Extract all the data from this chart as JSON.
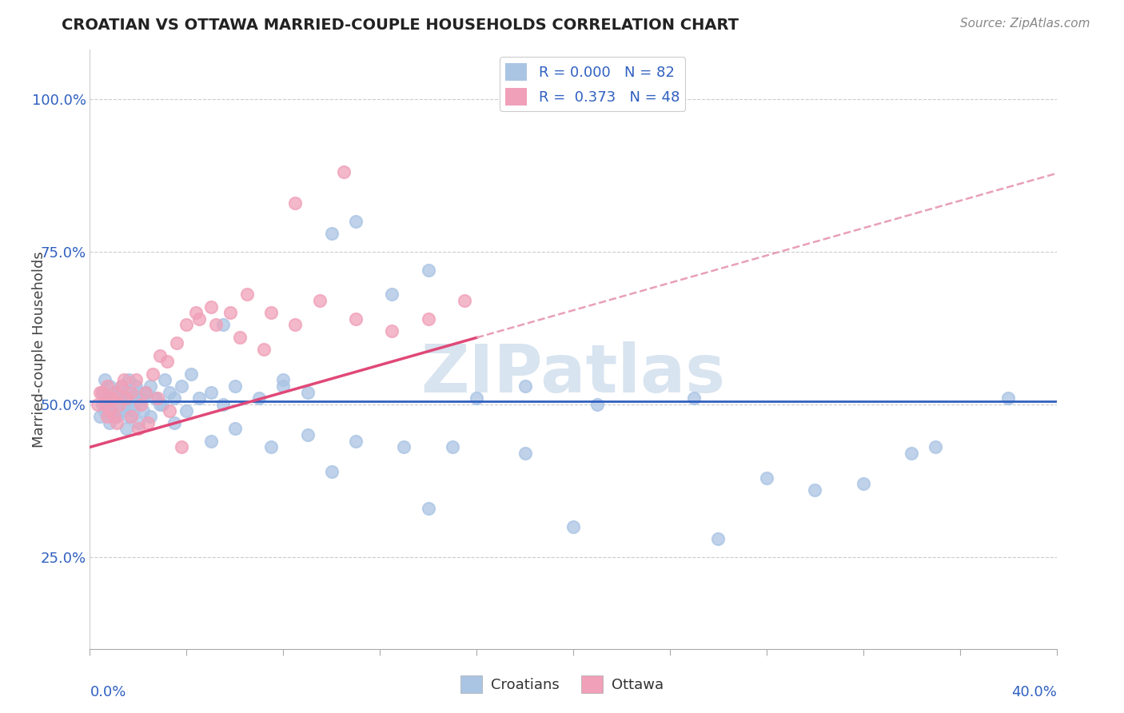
{
  "title": "CROATIAN VS OTTAWA MARRIED-COUPLE HOUSEHOLDS CORRELATION CHART",
  "source_text": "Source: ZipAtlas.com",
  "ylabel": "Married-couple Households",
  "blue_color": "#aac4e4",
  "pink_color": "#f0a0b8",
  "trend_blue_color": "#3060c0",
  "trend_pink_color": "#e04878",
  "trend_pink_dash_color": "#e8a0b8",
  "background_color": "#ffffff",
  "label_color": "#3060c0",
  "watermark_color": "#d8e4f0",
  "xlim": [
    0,
    40
  ],
  "ylim": [
    10,
    108
  ],
  "yticks": [
    25,
    50,
    75,
    100
  ],
  "ytick_labels": [
    "25.0%",
    "50.0%",
    "75.0%",
    "100.0%"
  ],
  "blue_flat_y": 50.5,
  "pink_slope": 1.12,
  "pink_intercept": 43.0,
  "pink_dash_slope": 1.12,
  "pink_dash_intercept": 43.0,
  "blue_x": [
    0.5,
    0.6,
    0.7,
    0.8,
    0.9,
    1.0,
    1.1,
    1.2,
    1.3,
    1.4,
    1.5,
    1.6,
    1.7,
    1.8,
    1.9,
    2.0,
    2.1,
    2.2,
    2.3,
    2.5,
    2.7,
    2.9,
    3.1,
    3.3,
    3.5,
    3.8,
    4.2,
    4.5,
    5.0,
    5.5,
    6.0,
    7.0,
    8.0,
    9.0,
    10.0,
    11.0,
    12.5,
    14.0,
    16.0,
    18.0,
    0.4,
    0.5,
    0.6,
    0.7,
    0.8,
    0.9,
    1.0,
    1.1,
    1.2,
    1.3,
    1.4,
    1.5,
    1.6,
    1.8,
    2.0,
    2.2,
    2.5,
    3.0,
    3.5,
    4.0,
    5.0,
    6.0,
    7.5,
    9.0,
    11.0,
    13.0,
    15.0,
    18.0,
    21.0,
    25.0,
    28.0,
    30.0,
    32.0,
    35.0,
    10.0,
    14.0,
    20.0,
    26.0,
    34.0,
    38.0,
    5.5,
    8.0
  ],
  "blue_y": [
    52,
    54,
    51,
    53,
    50,
    52,
    49,
    51,
    53,
    50,
    52,
    54,
    51,
    50,
    53,
    52,
    51,
    49,
    52,
    53,
    51,
    50,
    54,
    52,
    51,
    53,
    55,
    51,
    52,
    50,
    53,
    51,
    54,
    52,
    78,
    80,
    68,
    72,
    51,
    53,
    48,
    50,
    49,
    51,
    47,
    50,
    52,
    48,
    51,
    49,
    50,
    46,
    48,
    49,
    47,
    51,
    48,
    50,
    47,
    49,
    44,
    46,
    43,
    45,
    44,
    43,
    43,
    42,
    50,
    51,
    38,
    36,
    37,
    43,
    39,
    33,
    30,
    28,
    42,
    51,
    63,
    53
  ],
  "pink_x": [
    0.4,
    0.6,
    0.7,
    0.8,
    0.9,
    1.0,
    1.1,
    1.2,
    1.3,
    1.5,
    1.7,
    1.9,
    2.1,
    2.3,
    2.6,
    2.9,
    3.2,
    3.6,
    4.0,
    4.5,
    5.0,
    5.8,
    6.5,
    7.5,
    8.5,
    9.5,
    11.0,
    12.5,
    14.0,
    15.5,
    0.3,
    0.5,
    0.7,
    0.9,
    1.1,
    1.4,
    1.7,
    2.0,
    2.4,
    2.8,
    3.3,
    3.8,
    4.4,
    5.2,
    6.2,
    7.2,
    8.5,
    10.5
  ],
  "pink_y": [
    52,
    50,
    53,
    49,
    51,
    48,
    52,
    50,
    53,
    51,
    52,
    54,
    50,
    52,
    55,
    58,
    57,
    60,
    63,
    64,
    66,
    65,
    68,
    65,
    63,
    67,
    64,
    62,
    64,
    67,
    50,
    52,
    48,
    51,
    47,
    54,
    48,
    46,
    47,
    51,
    49,
    43,
    65,
    63,
    61,
    59,
    83,
    88
  ]
}
